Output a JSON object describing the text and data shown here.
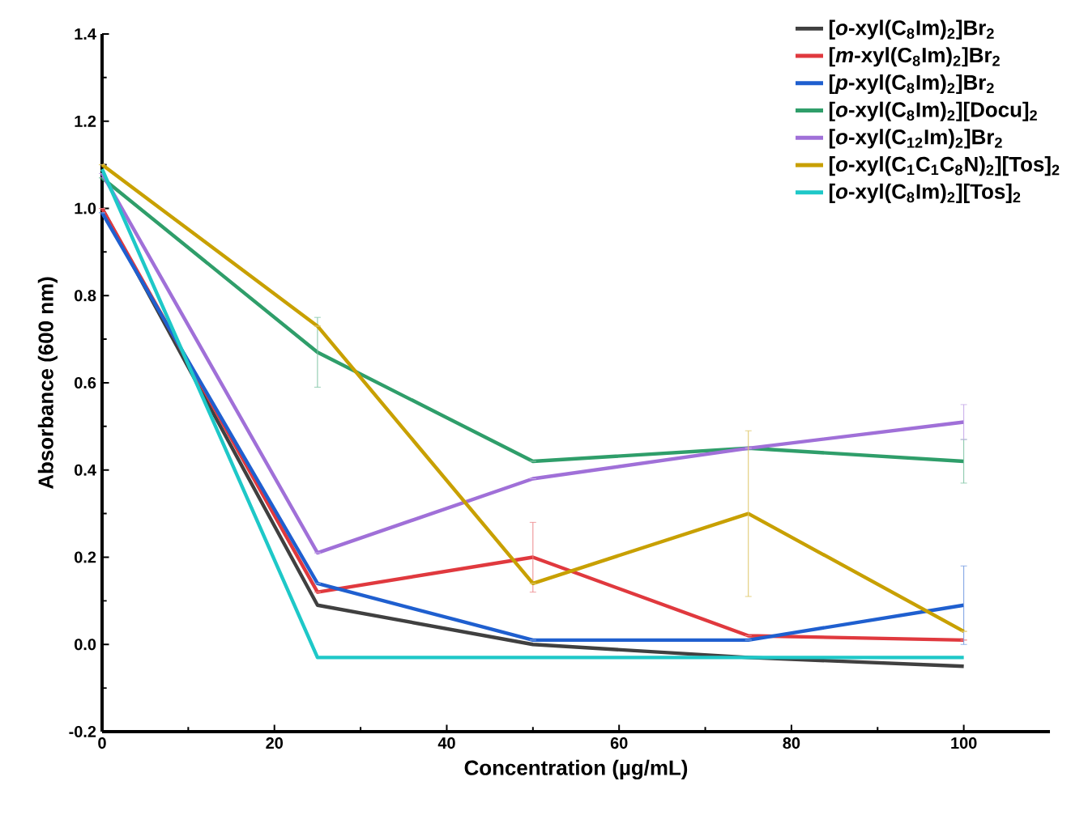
{
  "chart_data": {
    "type": "line",
    "xlabel": "Concentration (µg/mL)",
    "ylabel": "Absorbance (600 nm)",
    "x": [
      0,
      25,
      50,
      75,
      100
    ],
    "series": [
      {
        "name": "[*o*-xyl(C$_{8}$Im)$_{2}$]Br$_{2}$",
        "color": "#404040",
        "values": [
          1.0,
          0.09,
          0.0,
          -0.03,
          -0.05
        ]
      },
      {
        "name": "[*m*-xyl(C$_{8}$Im)$_{2}$]Br$_{2}$",
        "color": "#e0393e",
        "values": [
          1.0,
          0.12,
          0.2,
          0.02,
          0.01
        ],
        "errors": [
          null,
          null,
          0.08,
          null,
          null
        ]
      },
      {
        "name": "[*p*-xyl(C$_{8}$Im)$_{2}$]Br$_{2}$",
        "color": "#1f5fcf",
        "values": [
          0.99,
          0.14,
          0.01,
          0.01,
          0.09
        ],
        "errors": [
          null,
          null,
          null,
          null,
          0.09
        ]
      },
      {
        "name": "[*o*-xyl(C$_{8}$Im)$_{2}$][Docu]$_{2}$",
        "color": "#2f9e6a",
        "values": [
          1.07,
          0.67,
          0.42,
          0.45,
          0.42
        ],
        "errors": [
          null,
          0.08,
          null,
          null,
          0.05
        ]
      },
      {
        "name": "[*o*-xyl(C$_{12}$Im)$_{2}$]Br$_{2}$",
        "color": "#a070d8",
        "values": [
          1.08,
          0.21,
          0.38,
          0.45,
          0.51
        ],
        "errors": [
          null,
          null,
          null,
          null,
          0.04
        ]
      },
      {
        "name": "[*o*-xyl(C$_{1}$C$_{1}$C$_{8}$N)$_{2}$][Tos]$_{2}$",
        "color": "#c8a000",
        "values": [
          1.1,
          0.73,
          0.14,
          0.3,
          0.03
        ],
        "errors": [
          null,
          null,
          null,
          0.19,
          null
        ]
      },
      {
        "name": "[*o*-xyl(C$_{8}$Im)$_{2}$][Tos]$_{2}$",
        "color": "#1ec8c8",
        "values": [
          1.09,
          -0.03,
          -0.03,
          -0.03,
          -0.03
        ]
      }
    ],
    "xlim": [
      0,
      110
    ],
    "ylim": [
      -0.2,
      1.4
    ],
    "xticks": [
      0,
      20,
      40,
      60,
      80,
      100
    ],
    "yticks": [
      -0.2,
      {
        "value": 0,
        "label": "0.0"
      },
      0.2,
      0.4,
      0.6,
      0.8,
      {
        "value": 1,
        "label": "1.0"
      },
      1.2,
      1.4
    ],
    "grid": false,
    "legend": "top right",
    "marker": "none",
    "line_style": "solid"
  }
}
